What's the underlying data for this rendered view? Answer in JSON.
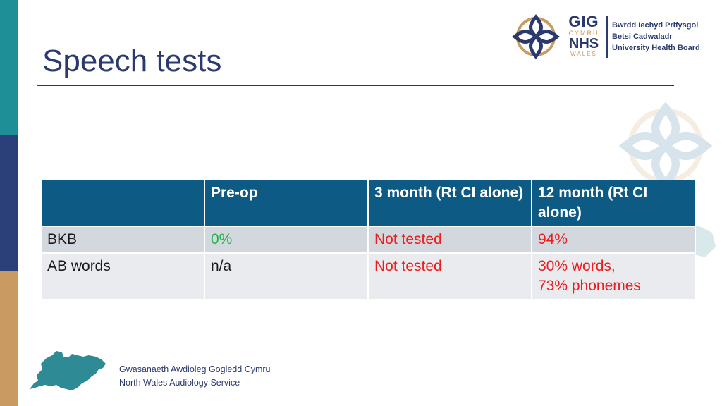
{
  "slide": {
    "title": "Speech tests"
  },
  "logo": {
    "gig": "GIG",
    "cymru": "CYMRU",
    "nhs": "NHS",
    "wales": "WALES",
    "org_lines": [
      "Bwrdd Iechyd Prifysgol",
      "Betsi Cadwaladr",
      "University Health Board"
    ]
  },
  "table": {
    "headers": [
      "",
      "Pre-op",
      "3 month (Rt CI alone)",
      "12 month (Rt CI alone)"
    ],
    "rows": [
      {
        "label": "BKB",
        "preop": "0%",
        "m3": "Not tested",
        "m12_line1": "94%",
        "m12_line2": ""
      },
      {
        "label": "AB words",
        "preop": "n/a",
        "m3": "Not tested",
        "m12_line1": "30% words,",
        "m12_line2": "73% phonemes"
      }
    ]
  },
  "colors": {
    "title": "#2b3a6e",
    "header_bg": "#0d5a85",
    "green_value": "#22b14c",
    "red_value": "#ee1c1c",
    "teal_bar": "#1e8f96",
    "navy_bar": "#2b3f78",
    "tan_bar": "#c99a62"
  },
  "footer": {
    "line1": "Gwasanaeth Awdioleg Gogledd Cymru",
    "line2": "North Wales Audiology Service"
  }
}
